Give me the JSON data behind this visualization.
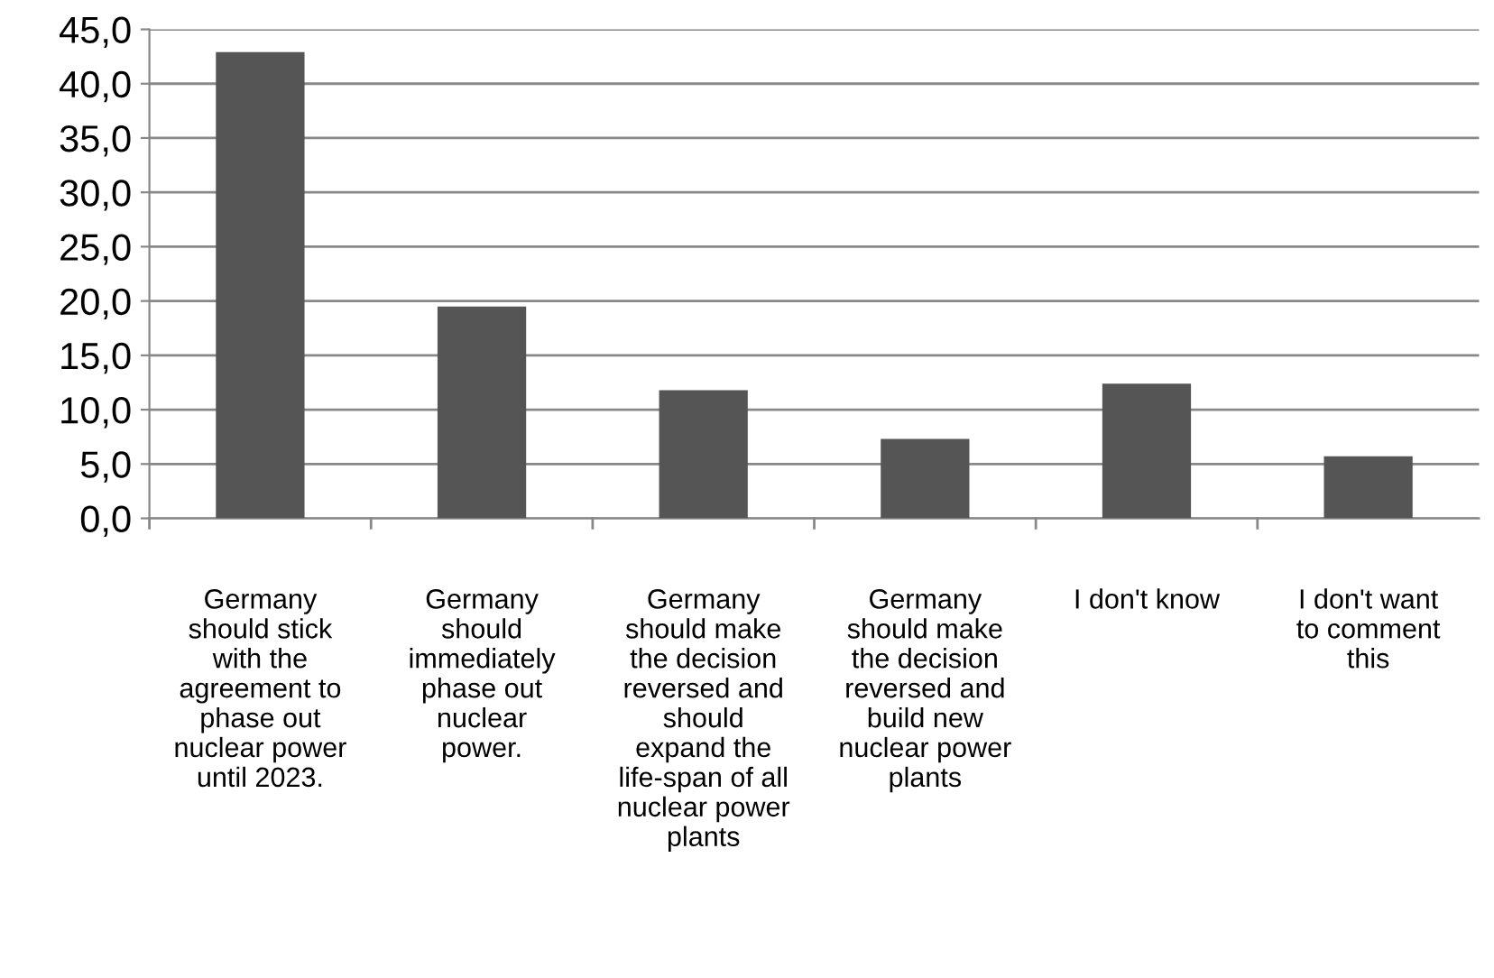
{
  "chart_data": {
    "type": "bar",
    "categories": [
      "Germany\nshould stick\nwith the\nagreement to\nphase out\nnuclear power\nuntil 2023.",
      "Germany\nshould\nimmediately\nphase out\nnuclear\npower.",
      "Germany\nshould make\nthe decision\nreversed and\nshould\nexpand the\nlife-span of all\nnuclear power\nplants",
      "Germany\nshould make\nthe decision\nreversed and\nbuild new\nnuclear power\nplants",
      "I don't know",
      "I don't want\nto comment\nthis"
    ],
    "values": [
      42.9,
      19.5,
      11.8,
      7.3,
      12.4,
      5.7
    ],
    "color": "#555555",
    "ylim": [
      0,
      45
    ],
    "yticks": [
      {
        "value": 0,
        "label": "0,0"
      },
      {
        "value": 5,
        "label": "5,0"
      },
      {
        "value": 10,
        "label": "10,0"
      },
      {
        "value": 15,
        "label": "15,0"
      },
      {
        "value": 20,
        "label": "20,0"
      },
      {
        "value": 25,
        "label": "25,0"
      },
      {
        "value": 30,
        "label": "30,0"
      },
      {
        "value": 35,
        "label": "35,0"
      },
      {
        "value": 40,
        "label": "40,0"
      },
      {
        "value": 45,
        "label": "45,0"
      }
    ],
    "grid": "y"
  }
}
